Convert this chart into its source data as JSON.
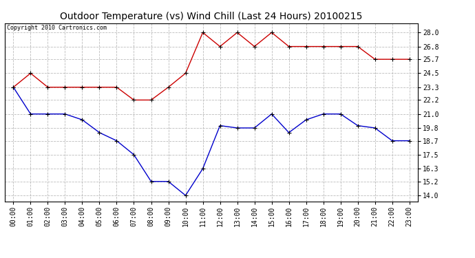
{
  "title": "Outdoor Temperature (vs) Wind Chill (Last 24 Hours) 20100215",
  "copyright": "Copyright 2010 Cartronics.com",
  "x_labels": [
    "00:00",
    "01:00",
    "02:00",
    "03:00",
    "04:00",
    "05:00",
    "06:00",
    "07:00",
    "08:00",
    "09:00",
    "10:00",
    "11:00",
    "12:00",
    "13:00",
    "14:00",
    "15:00",
    "16:00",
    "17:00",
    "18:00",
    "19:00",
    "20:00",
    "21:00",
    "22:00",
    "23:00"
  ],
  "red_data": [
    23.3,
    24.5,
    23.3,
    23.3,
    23.3,
    23.3,
    23.3,
    22.2,
    22.2,
    23.3,
    24.5,
    28.0,
    26.8,
    28.0,
    26.8,
    28.0,
    26.8,
    26.8,
    26.8,
    26.8,
    26.8,
    25.7,
    25.7,
    25.7
  ],
  "blue_data": [
    23.3,
    21.0,
    21.0,
    21.0,
    20.5,
    19.4,
    18.7,
    17.5,
    15.2,
    15.2,
    14.0,
    16.3,
    20.0,
    19.8,
    19.8,
    21.0,
    19.4,
    20.5,
    21.0,
    21.0,
    20.0,
    19.8,
    18.7,
    18.7
  ],
  "red_color": "#cc0000",
  "blue_color": "#0000cc",
  "background_color": "#ffffff",
  "plot_bg_color": "#ffffff",
  "grid_color": "#bbbbbb",
  "y_ticks": [
    14.0,
    15.2,
    16.3,
    17.5,
    18.7,
    19.8,
    21.0,
    22.2,
    23.3,
    24.5,
    25.7,
    26.8,
    28.0
  ],
  "ylim": [
    13.5,
    28.8
  ],
  "title_fontsize": 10,
  "copyright_fontsize": 6,
  "tick_fontsize": 7
}
